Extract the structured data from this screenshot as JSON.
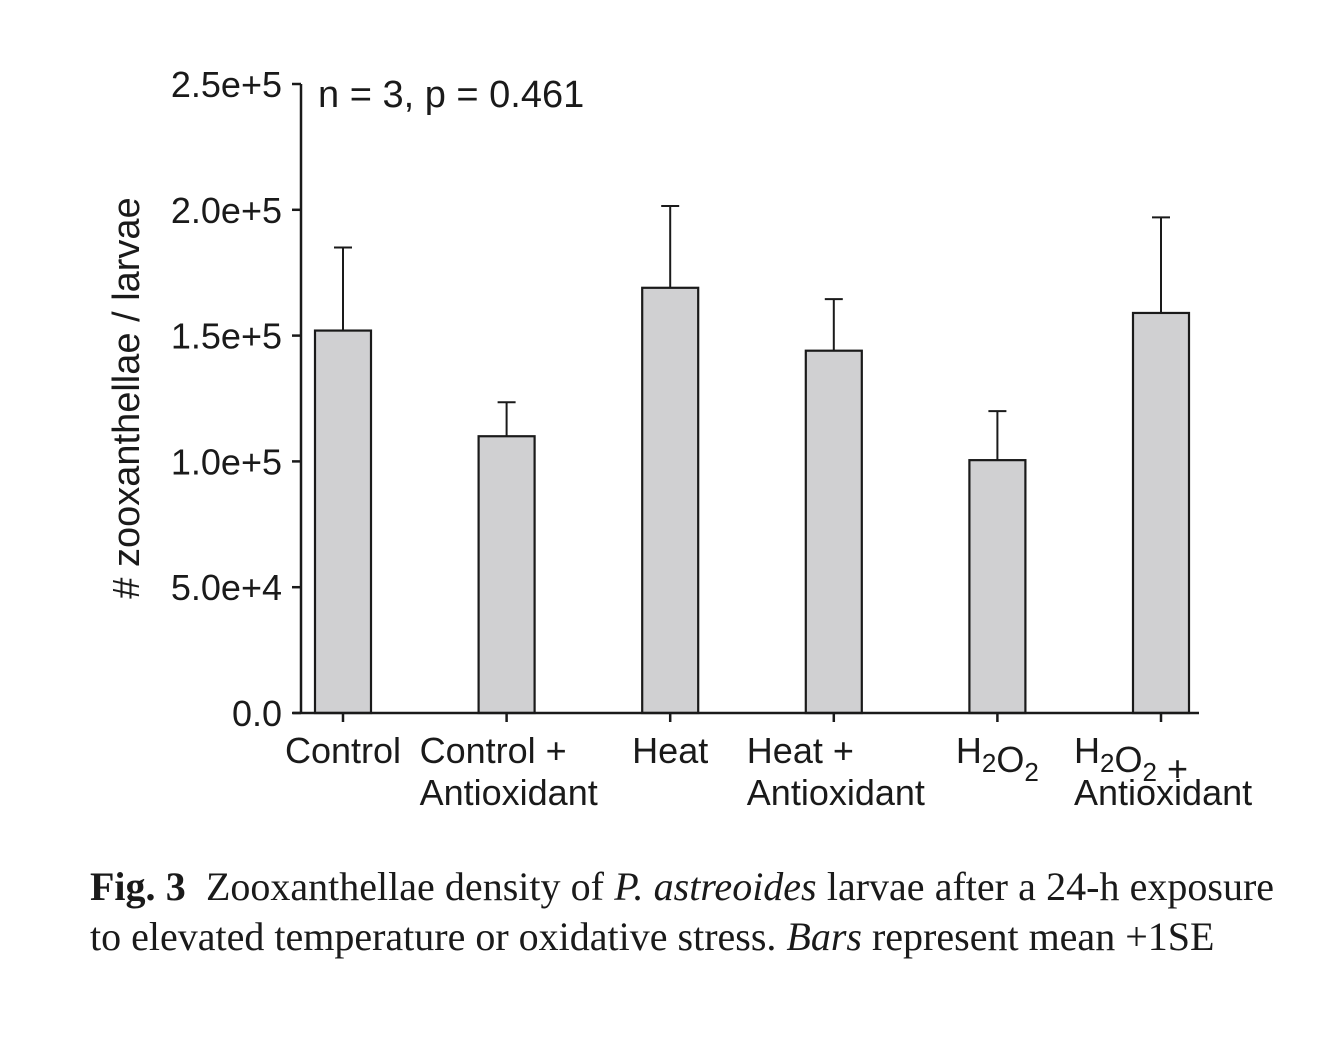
{
  "chart_data": {
    "type": "bar",
    "annotation": "n = 3, p = 0.461",
    "ylabel": "# zooxanthellae / larvae",
    "xlabel": "",
    "ylim": [
      0,
      250000
    ],
    "y_ticks": [
      {
        "value": 0,
        "label": "0.0"
      },
      {
        "value": 50000,
        "label": "5.0e+4"
      },
      {
        "value": 100000,
        "label": "1.0e+5"
      },
      {
        "value": 150000,
        "label": "1.5e+5"
      },
      {
        "value": 200000,
        "label": "2.0e+5"
      },
      {
        "value": 250000,
        "label": "2.5e+5"
      }
    ],
    "categories": [
      {
        "line1": "Control",
        "line2": ""
      },
      {
        "line1": "Control +",
        "line2": "Antioxidant"
      },
      {
        "line1": "Heat",
        "line2": ""
      },
      {
        "line1": "Heat +",
        "line2": "Antioxidant"
      },
      {
        "line1": "H2O2",
        "line2": ""
      },
      {
        "line1": "H2O2 +",
        "line2": "Antioxidant"
      }
    ],
    "values": [
      152000,
      110000,
      169000,
      144000,
      100500,
      159000
    ],
    "error_plus_1se": [
      33000,
      13500,
      32500,
      20500,
      19500,
      38000
    ],
    "bar_color": "#d0d0d2",
    "grid": false
  },
  "caption": {
    "label": "Fig. 3",
    "text_1": "Zooxanthellae density of",
    "species": "P. astreoides",
    "text_2": "larvae after a 24-h exposure to elevated temperature or oxidative stress.",
    "bars_word": "Bars",
    "text_3": "represent mean +1SE"
  }
}
